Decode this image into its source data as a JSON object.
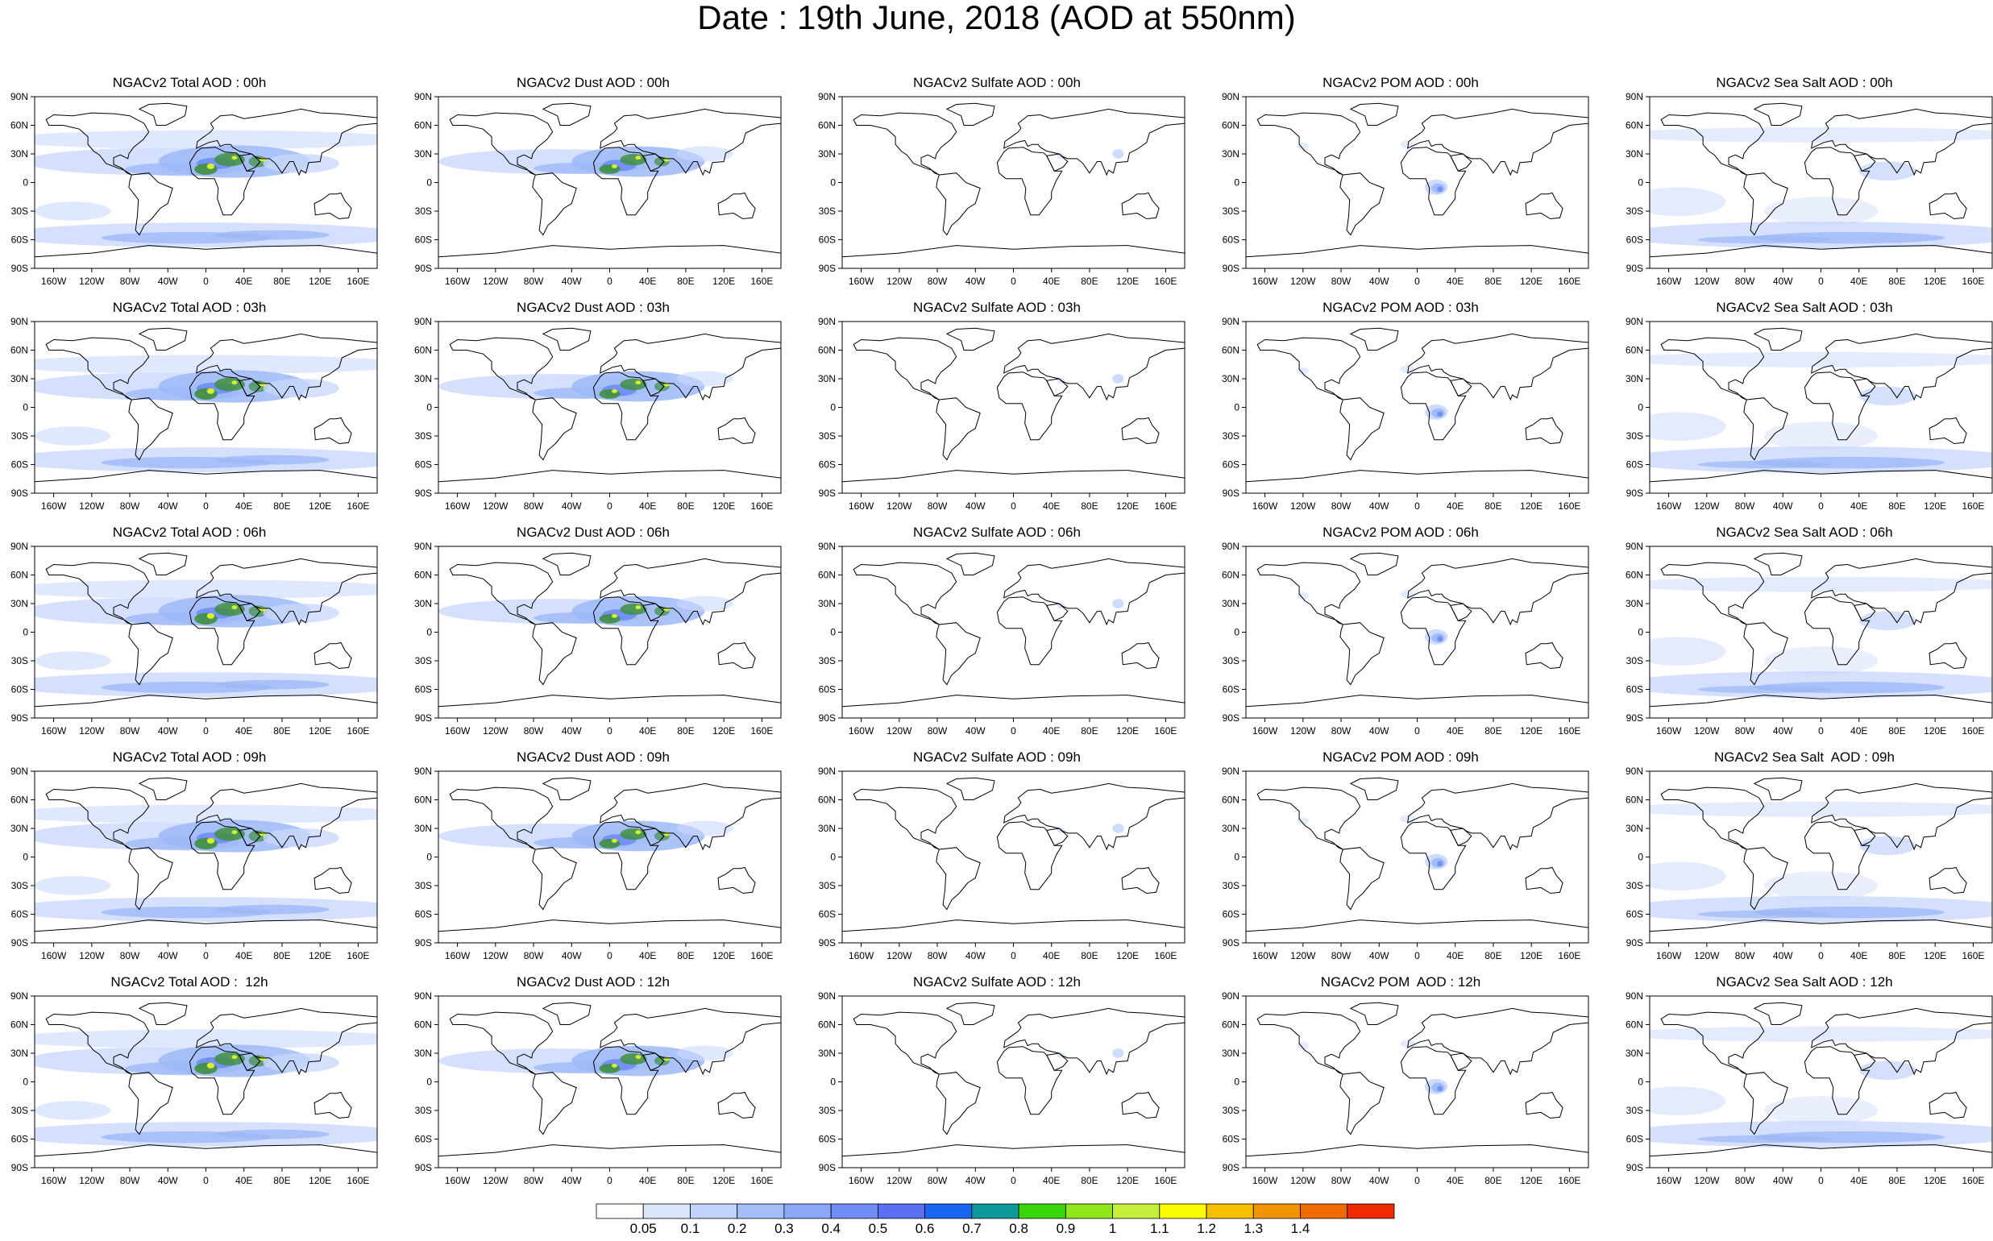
{
  "title": "Date : 19th June, 2018 (AOD at 550nm)",
  "panel_titles": [
    [
      "NGACv2 Total AOD : 00h",
      "NGACv2 Dust AOD : 00h",
      "NGACv2 Sulfate AOD : 00h",
      "NGACv2 POM AOD : 00h",
      "NGACv2 Sea Salt AOD : 00h"
    ],
    [
      "NGACv2 Total AOD : 03h",
      "NGACv2 Dust AOD : 03h",
      "NGACv2 Sulfate AOD : 03h",
      "NGACv2 POM AOD : 03h",
      "NGACv2 Sea Salt AOD : 03h"
    ],
    [
      "NGACv2 Total AOD : 06h",
      "NGACv2 Dust AOD : 06h",
      "NGACv2 Sulfate AOD : 06h",
      "NGACv2 POM AOD : 06h",
      "NGACv2 Sea Salt AOD : 06h"
    ],
    [
      "NGACv2 Total AOD : 09h",
      "NGACv2 Dust AOD : 09h",
      "NGACv2 Sulfate AOD : 09h",
      "NGACv2 POM AOD : 09h",
      "NGACv2 Sea Salt  AOD : 09h"
    ],
    [
      "NGACv2 Total AOD :  12h",
      "NGACv2 Dust AOD : 12h",
      "NGACv2 Sulfate AOD : 12h",
      "NGACv2 POM  AOD : 12h",
      "NGACv2 Sea Salt AOD : 12h"
    ]
  ],
  "lat_labels": [
    "90N",
    "60N",
    "30N",
    "0",
    "30S",
    "60S",
    "90S"
  ],
  "lon_labels": [
    "160W",
    "120W",
    "80W",
    "40W",
    "0",
    "40E",
    "80E",
    "120E",
    "160E"
  ],
  "colorbar": {
    "labels": [
      "0.05",
      "0.1",
      "0.2",
      "0.3",
      "0.4",
      "0.5",
      "0.6",
      "0.7",
      "0.8",
      "0.9",
      "1",
      "1.1",
      "1.2",
      "1.3",
      "1.4"
    ],
    "colors": [
      "#ffffff",
      "#dbe6fc",
      "#c1d3fb",
      "#a5befa",
      "#8aa8f7",
      "#6f8df5",
      "#5b6ff2",
      "#1a66f2",
      "#0e9a9a",
      "#38d60a",
      "#8fe619",
      "#c6ef3c",
      "#fbfb00",
      "#f5c000",
      "#f29400",
      "#ef6a00",
      "#f02a00"
    ]
  },
  "species_colors": {
    "dust_core": "#3f8f3f",
    "dust_peak": "#d6f02a",
    "aod_light": "#c9d8fb",
    "aod_medium": "#9db8f8",
    "aod_strong": "#6f8df5",
    "coast": "#000000"
  }
}
